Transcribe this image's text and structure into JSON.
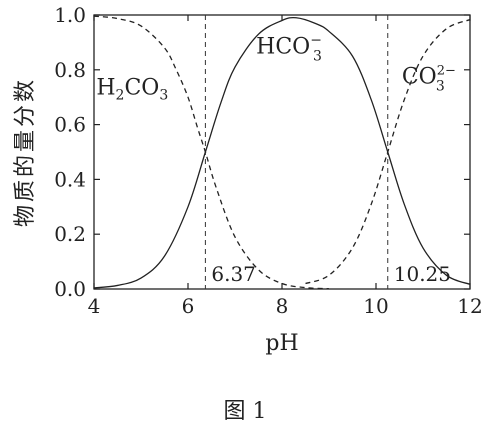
{
  "figure_caption": "图 1",
  "chart_data": {
    "type": "line",
    "xlabel": "pH",
    "ylabel": "物质的量分数",
    "xlim": [
      4,
      12
    ],
    "ylim": [
      0.0,
      1.0
    ],
    "x_ticks": [
      "4",
      "6",
      "8",
      "10",
      "12"
    ],
    "y_ticks": [
      "0.0",
      "0.2",
      "0.4",
      "0.6",
      "0.8",
      "1.0"
    ],
    "grid": false,
    "series": [
      {
        "name": "H2CO3",
        "label_parts": {
          "pre": "H",
          "sub1": "2",
          "mid": "CO",
          "sub2": "3"
        },
        "style": "dashed",
        "x": [
          4.0,
          4.5,
          5.0,
          5.5,
          5.75,
          6.0,
          6.2,
          6.37,
          6.6,
          7.0,
          7.5,
          8.0,
          8.5,
          9.0
        ],
        "y": [
          0.996,
          0.987,
          0.96,
          0.88,
          0.8,
          0.7,
          0.59,
          0.5,
          0.37,
          0.19,
          0.07,
          0.02,
          0.005,
          0.001
        ]
      },
      {
        "name": "HCO3-",
        "label_parts": {
          "pre": "HCO",
          "sub": "3",
          "sup": "−"
        },
        "style": "solid",
        "x": [
          4.0,
          4.5,
          5.0,
          5.5,
          6.0,
          6.37,
          6.7,
          7.0,
          7.5,
          8.0,
          8.3,
          8.7,
          9.0,
          9.5,
          9.9,
          10.25,
          10.6,
          11.0,
          11.5,
          12.0
        ],
        "y": [
          0.004,
          0.013,
          0.04,
          0.12,
          0.3,
          0.5,
          0.68,
          0.81,
          0.93,
          0.98,
          0.99,
          0.97,
          0.94,
          0.85,
          0.69,
          0.5,
          0.31,
          0.15,
          0.05,
          0.017
        ]
      },
      {
        "name": "CO3 2-",
        "label_parts": {
          "pre": "CO",
          "sub": "3",
          "sup": "2−"
        },
        "style": "dashed",
        "x": [
          8.5,
          9.0,
          9.5,
          9.9,
          10.25,
          10.6,
          11.0,
          11.5,
          12.0
        ],
        "y": [
          0.02,
          0.05,
          0.15,
          0.31,
          0.5,
          0.69,
          0.85,
          0.95,
          0.983
        ]
      }
    ],
    "vlines": [
      {
        "x": 6.37,
        "label": "6.37"
      },
      {
        "x": 10.25,
        "label": "10.25"
      }
    ]
  }
}
